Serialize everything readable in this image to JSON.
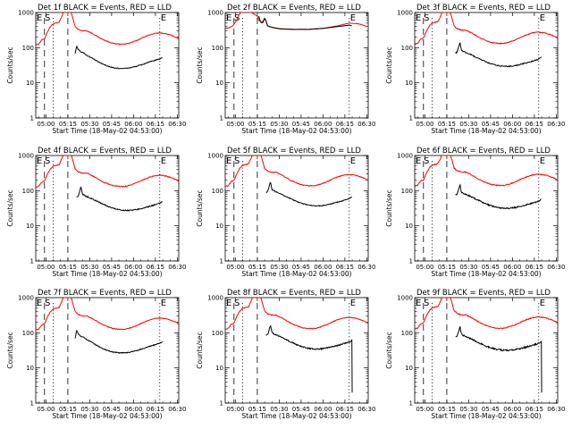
{
  "chart_data": {
    "type": "line",
    "yscale": "log",
    "ylim": [
      1,
      1000
    ],
    "yticks": [
      "1",
      "10",
      "100",
      "1000"
    ],
    "xticks": [
      "05:00",
      "05:15",
      "05:30",
      "05:45",
      "06:00",
      "06:15",
      "06:30"
    ],
    "xlabel": "Start Time (18-May-02 04:53:00)",
    "ylabel": "Counts/sec",
    "colors": {
      "events": "#000000",
      "lld": "#ff0000"
    },
    "panels": [
      {
        "title": "Det 1f BLACK = Events, RED = LLD",
        "markers": [
          "E",
          "S",
          "E"
        ],
        "events_tail_drop": false
      },
      {
        "title": "Det 2f BLACK = Events, RED = LLD",
        "markers": [
          "E",
          "S",
          "E"
        ],
        "events_tail_drop": false
      },
      {
        "title": "Det 3f BLACK = Events, RED = LLD",
        "markers": [
          "E",
          "S",
          "E"
        ],
        "events_tail_drop": false
      },
      {
        "title": "Det 4f BLACK = Events, RED = LLD",
        "markers": [
          "E",
          "S",
          "E"
        ],
        "events_tail_drop": false
      },
      {
        "title": "Det 5f BLACK = Events, RED = LLD",
        "markers": [
          "E",
          "S",
          "E"
        ],
        "events_tail_drop": false
      },
      {
        "title": "Det 6f BLACK = Events, RED = LLD",
        "markers": [
          "E",
          "S",
          "E"
        ],
        "events_tail_drop": false
      },
      {
        "title": "Det 7f BLACK = Events, RED = LLD",
        "markers": [
          "E",
          "S",
          "E"
        ],
        "events_tail_drop": false
      },
      {
        "title": "Det 8f BLACK = Events, RED = LLD",
        "markers": [
          "E",
          "S",
          "E"
        ],
        "events_tail_drop": true
      },
      {
        "title": "Det 9f BLACK = Events, RED = LLD",
        "markers": [
          "E",
          "S",
          "E"
        ],
        "events_tail_drop": true
      }
    ]
  }
}
